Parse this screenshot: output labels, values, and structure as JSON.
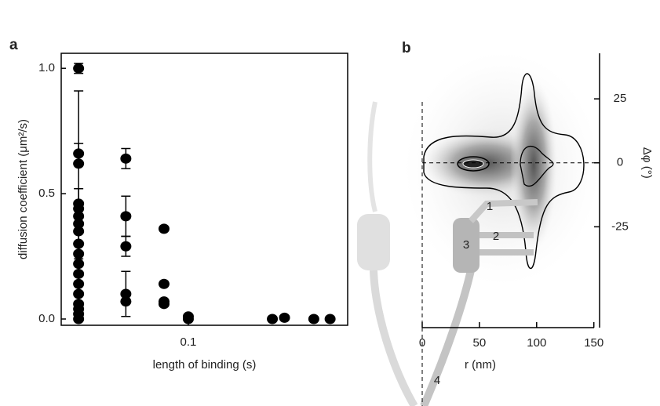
{
  "chart_data": [
    {
      "type": "scatter",
      "panel": "a",
      "xlabel": "length of binding (s)",
      "ylabel": "diffusion coefficient (μm²/s)",
      "log_x": true,
      "color": "#000000",
      "x": [
        0.02,
        0.02,
        0.02,
        0.02,
        0.02,
        0.02,
        0.02,
        0.02,
        0.02,
        0.02,
        0.02,
        0.02,
        0.02,
        0.02,
        0.02,
        0.02,
        0.02,
        0.02,
        0.04,
        0.04,
        0.04,
        0.04,
        0.04,
        0.07,
        0.07,
        0.07,
        0.07,
        0.1,
        0.1,
        0.343,
        0.41,
        0.63,
        0.8
      ],
      "y": [
        1.0,
        0.66,
        0.62,
        0.46,
        0.44,
        0.41,
        0.38,
        0.35,
        0.3,
        0.26,
        0.22,
        0.18,
        0.14,
        0.1,
        0.06,
        0.04,
        0.02,
        0.0,
        0.64,
        0.41,
        0.29,
        0.1,
        0.07,
        0.36,
        0.14,
        0.07,
        0.06,
        0.01,
        0.0,
        0.0,
        0.005,
        0.0,
        0.0
      ],
      "errors": [
        0.02,
        0.04,
        null,
        0.45,
        null,
        null,
        0.14,
        null,
        null,
        null,
        0.04,
        null,
        null,
        null,
        null,
        null,
        null,
        null,
        0.04,
        0.08,
        0.04,
        0.09,
        null,
        null,
        null,
        null,
        null,
        null,
        null,
        null,
        null,
        null,
        null
      ],
      "xlim": [
        0.0155,
        1.035
      ],
      "xticks": [
        0.1
      ],
      "ylim": [
        -0.025,
        1.06
      ],
      "yticks": [
        {
          "value": 0,
          "label": "0.0"
        },
        {
          "value": 0.5,
          "label": "0.5"
        },
        {
          "value": 1,
          "label": "1.0"
        }
      ]
    },
    {
      "type": "contour",
      "panel": "b",
      "xlabel": "r (nm)",
      "ylabel": "Δφ (°)",
      "xlim": [
        0,
        155
      ],
      "xticks": [
        0,
        50,
        100,
        150
      ],
      "ylim": [
        -64.4,
        42.8
      ],
      "yticks": [
        25,
        0,
        -25
      ],
      "labels": [
        "1",
        "2",
        "3",
        "4"
      ]
    }
  ]
}
